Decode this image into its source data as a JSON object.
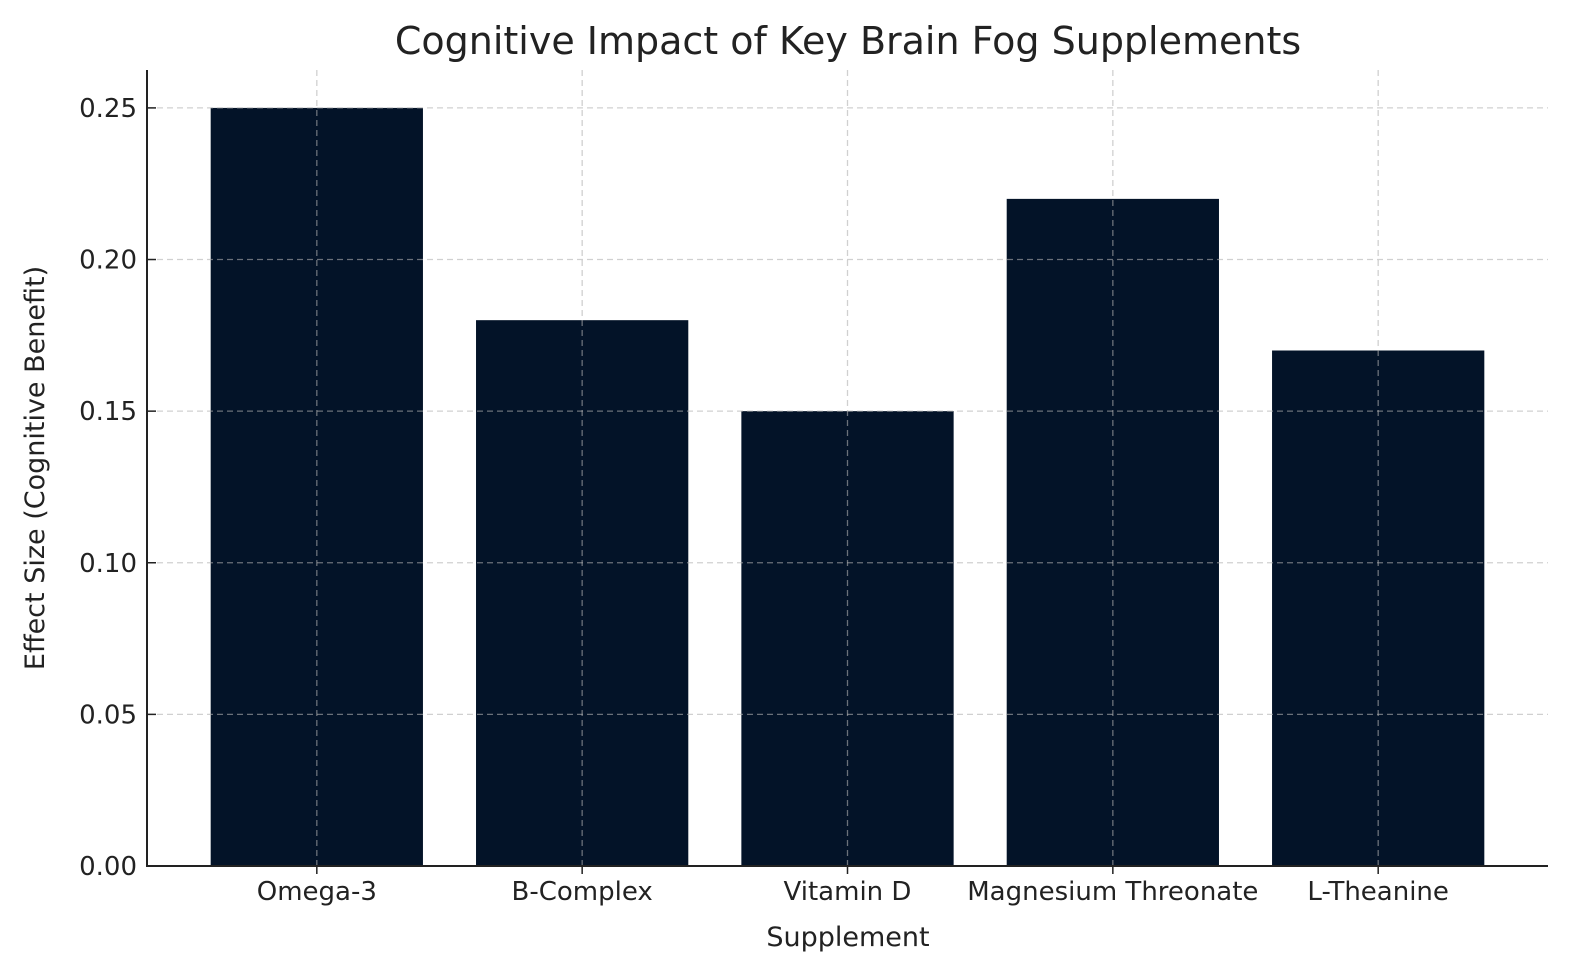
{
  "chart_data": {
    "type": "bar",
    "title": "Cognitive Impact of Key Brain Fog Supplements",
    "xlabel": "Supplement",
    "ylabel": "Effect Size (Cognitive Benefit)",
    "categories": [
      "Omega-3",
      "B-Complex",
      "Vitamin D",
      "Magnesium Threonate",
      "L-Theanine"
    ],
    "values": [
      0.25,
      0.18,
      0.15,
      0.22,
      0.17
    ],
    "ylim": [
      0,
      0.2625
    ],
    "yticks": [
      0.0,
      0.05,
      0.1,
      0.15,
      0.2,
      0.25
    ],
    "ytick_labels": [
      "0.00",
      "0.05",
      "0.10",
      "0.15",
      "0.20",
      "0.25"
    ],
    "grid": true,
    "grid_style": "dashed",
    "legend": "none",
    "colors": {
      "bar": "#031328",
      "grid": "#cccccc",
      "axis": "#222222"
    }
  }
}
